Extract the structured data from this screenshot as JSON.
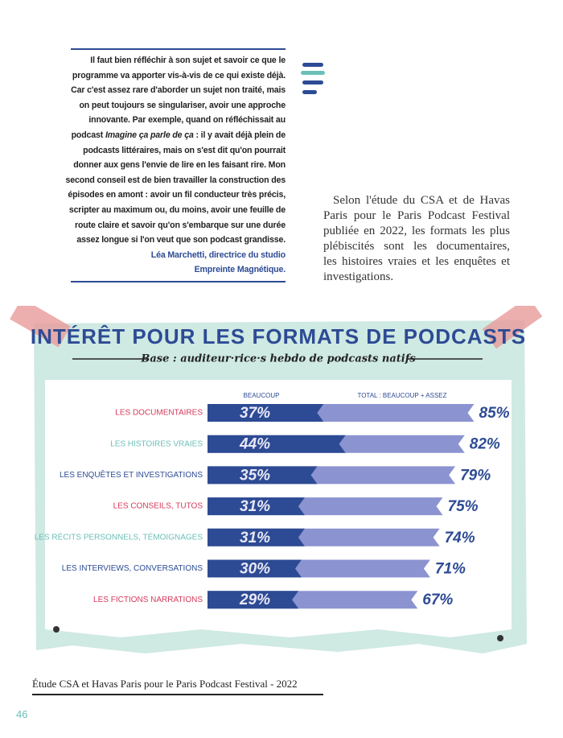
{
  "quote": {
    "lines": [
      "Il faut bien réfléchir à son sujet et savoir ce que le",
      "programme va apporter vis-à-vis de ce qui existe déjà.",
      "Car c'est assez rare d'aborder un sujet non traité, mais",
      "on peut toujours se singulariser, avoir une approche",
      "innovante. Par exemple, quand on réfléchissait au",
      [
        "podcast ",
        "Imagine ça parle de ça",
        " : il y avait déjà plein de"
      ],
      "podcasts littéraires, mais on s'est dit qu'on pourrait",
      "donner aux gens l'envie de lire en les faisant rire. Mon",
      "second conseil est de bien travailler la construction des",
      "épisodes en amont : avoir un fil conducteur très précis,",
      "scripter au maximum ou, du moins, avoir une feuille de",
      "route claire et savoir qu'on s'embarque sur une durée",
      "assez longue si l'on veut que son podcast grandisse."
    ],
    "attribution": [
      "Léa Marchetti, directrice du studio",
      "Empreinte Magnétique."
    ]
  },
  "paragraph": [
    "Selon l'étude du CSA et de Havas",
    "Paris pour le Paris Podcast Festival",
    "publiée en 2022, les formats les plus",
    "plébiscités sont les documentaires,",
    "les histoires vraies et les enquêtes et",
    "investigations."
  ],
  "chart_data": {
    "type": "bar",
    "orientation": "horizontal",
    "title": "INTÉRÊT POUR LES FORMATS DE PODCASTS",
    "subtitle": "Base : auditeur·rice·s hebdo de podcasts natifs",
    "categories": [
      "LES DOCUMENTAIRES",
      "LES HISTOIRES VRAIES",
      "LES ENQUÊTES ET INVESTIGATIONS",
      "LES CONSEILS, TUTOS",
      "LES RÉCITS PERSONNELS, TÉMOIGNAGES",
      "LES INTERVIEWS, CONVERSATIONS",
      "LES FICTIONS NARRATIONS"
    ],
    "category_colors": [
      "#d6395a",
      "#6cbfb8",
      "#2d4b94",
      "#d6395a",
      "#6cbfb8",
      "#2d4b94",
      "#d6395a"
    ],
    "series": [
      {
        "name": "BEAUCOUP",
        "color": "#2d4b94",
        "values": [
          37,
          44,
          35,
          31,
          31,
          30,
          29
        ],
        "value_labels": [
          "37%",
          "44%",
          "35%",
          "31%",
          "31%",
          "30%",
          "29%"
        ]
      },
      {
        "name": "TOTAL : BEAUCOUP + ASSEZ",
        "color": "#8b93d0",
        "values": [
          85,
          82,
          79,
          75,
          74,
          71,
          67
        ],
        "value_labels": [
          "85%",
          "82%",
          "79%",
          "75%",
          "74%",
          "71%",
          "67%"
        ]
      }
    ]
  },
  "caption": "Étude CSA et Havas Paris pour le Paris Podcast Festival - 2022",
  "page_number": "46"
}
